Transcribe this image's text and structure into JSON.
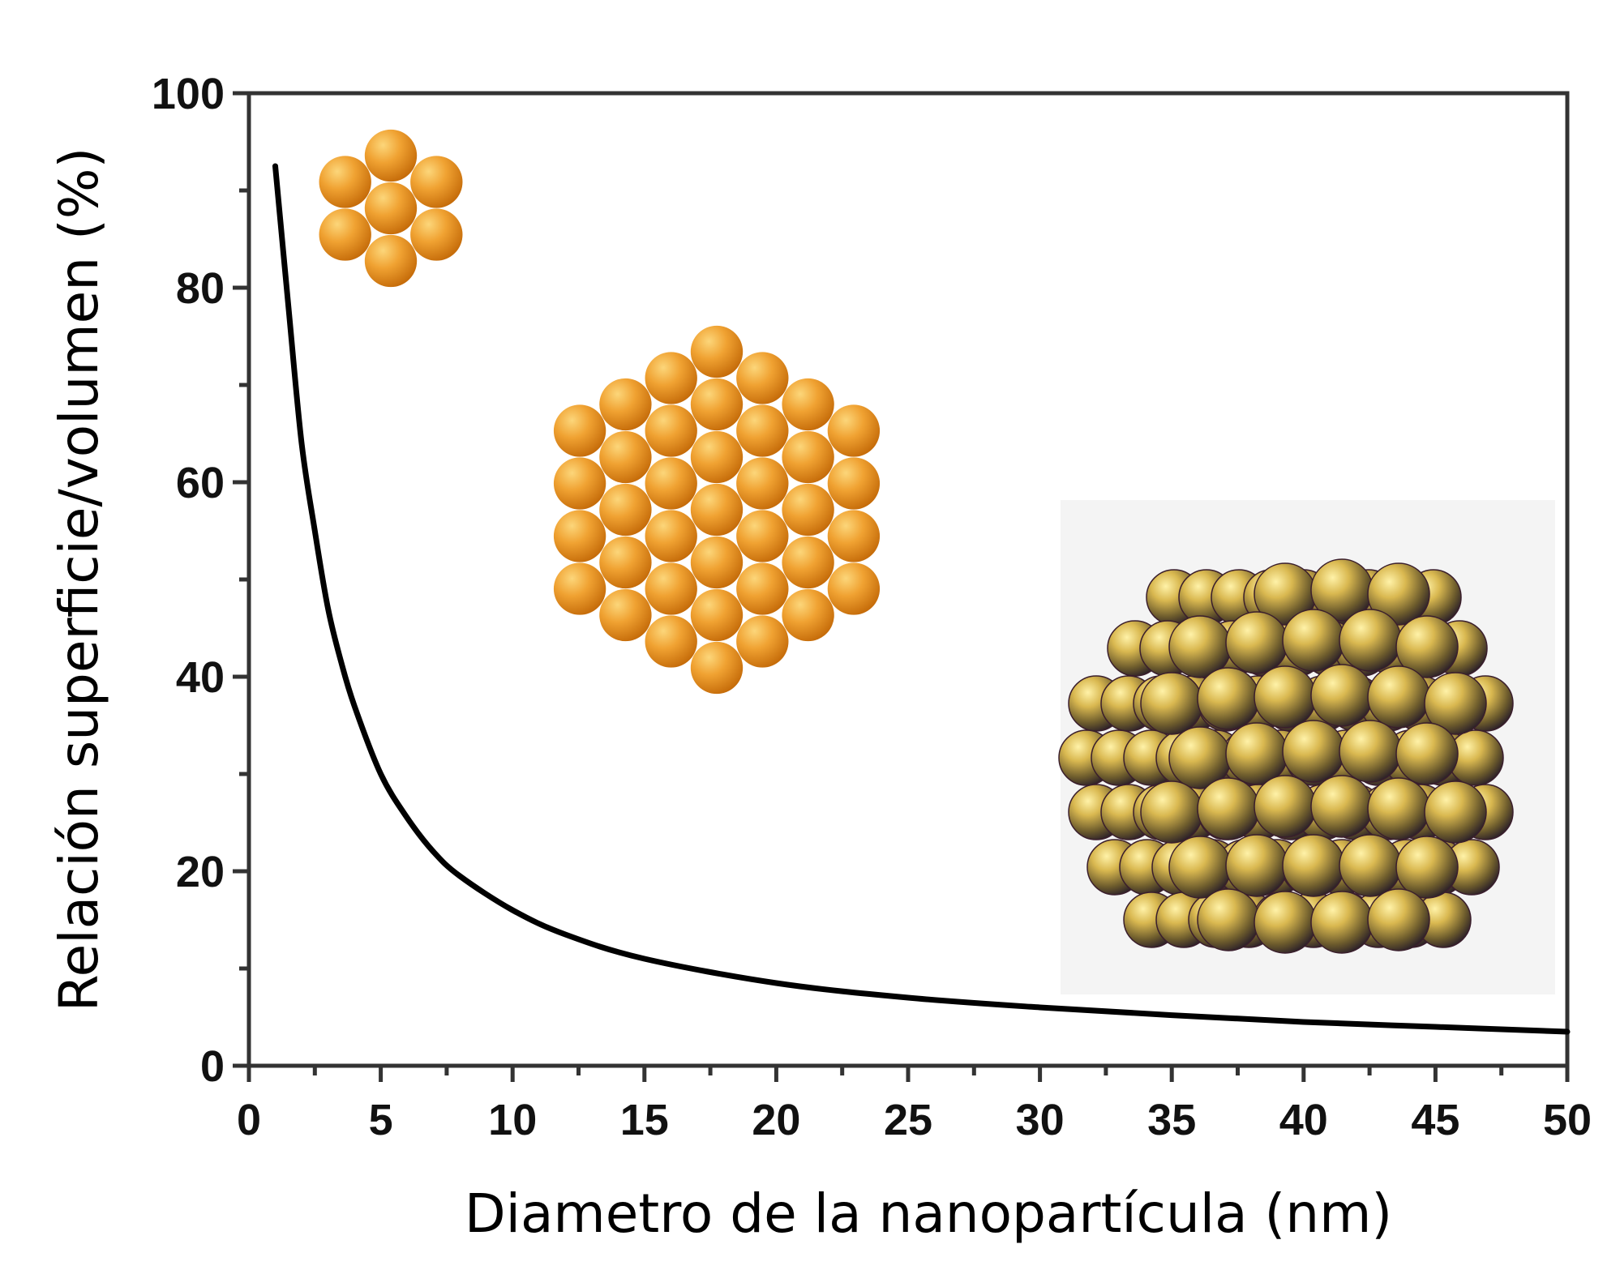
{
  "chart_data": {
    "type": "line",
    "title": "",
    "xlabel": "Diametro de la nanopartícula (nm)",
    "ylabel": "Relación superficie/volumen (%)",
    "xlim": [
      0,
      50
    ],
    "ylim": [
      0,
      100
    ],
    "x_ticks": [
      0,
      5,
      10,
      15,
      20,
      25,
      30,
      35,
      40,
      45,
      50
    ],
    "y_ticks": [
      0,
      20,
      40,
      60,
      80,
      100
    ],
    "grid": false,
    "legend": "none",
    "series": [
      {
        "color": "#000000",
        "x": [
          1,
          1.5,
          2,
          2.5,
          3,
          3.5,
          4,
          5,
          6,
          7,
          8,
          10,
          12,
          15,
          20,
          25,
          30,
          35,
          40,
          45,
          50
        ],
        "y": [
          92.5,
          78,
          64,
          55,
          47,
          41.5,
          37,
          30,
          25.5,
          22,
          19.5,
          16,
          13.5,
          11,
          8.5,
          7,
          6,
          5.2,
          4.5,
          4,
          3.5
        ]
      }
    ],
    "illustrations": [
      {
        "name": "small-cluster",
        "color": "#e8921e"
      },
      {
        "name": "medium-cluster",
        "color": "#e8921e"
      },
      {
        "name": "large-cluster",
        "color": "#c9a748"
      }
    ]
  }
}
